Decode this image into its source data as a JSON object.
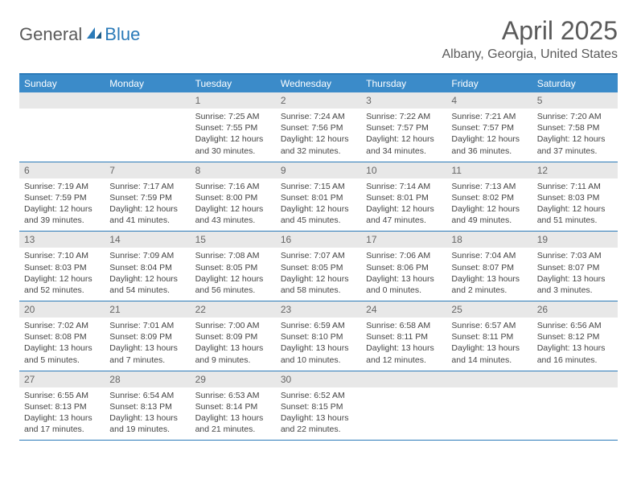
{
  "logo": {
    "text1": "General",
    "text2": "Blue"
  },
  "title": "April 2025",
  "location": "Albany, Georgia, United States",
  "colors": {
    "header_bg": "#3b8bc9",
    "border": "#2a7ab8",
    "daynum_bg": "#e8e8e8",
    "text": "#444444",
    "title_color": "#5a5a5a"
  },
  "fonts": {
    "title_size": 32,
    "location_size": 16,
    "header_size": 12,
    "body_size": 10.5
  },
  "day_names": [
    "Sunday",
    "Monday",
    "Tuesday",
    "Wednesday",
    "Thursday",
    "Friday",
    "Saturday"
  ],
  "weeks": [
    [
      null,
      null,
      {
        "n": "1",
        "sr": "7:25 AM",
        "ss": "7:55 PM",
        "dl": "12 hours and 30 minutes."
      },
      {
        "n": "2",
        "sr": "7:24 AM",
        "ss": "7:56 PM",
        "dl": "12 hours and 32 minutes."
      },
      {
        "n": "3",
        "sr": "7:22 AM",
        "ss": "7:57 PM",
        "dl": "12 hours and 34 minutes."
      },
      {
        "n": "4",
        "sr": "7:21 AM",
        "ss": "7:57 PM",
        "dl": "12 hours and 36 minutes."
      },
      {
        "n": "5",
        "sr": "7:20 AM",
        "ss": "7:58 PM",
        "dl": "12 hours and 37 minutes."
      }
    ],
    [
      {
        "n": "6",
        "sr": "7:19 AM",
        "ss": "7:59 PM",
        "dl": "12 hours and 39 minutes."
      },
      {
        "n": "7",
        "sr": "7:17 AM",
        "ss": "7:59 PM",
        "dl": "12 hours and 41 minutes."
      },
      {
        "n": "8",
        "sr": "7:16 AM",
        "ss": "8:00 PM",
        "dl": "12 hours and 43 minutes."
      },
      {
        "n": "9",
        "sr": "7:15 AM",
        "ss": "8:01 PM",
        "dl": "12 hours and 45 minutes."
      },
      {
        "n": "10",
        "sr": "7:14 AM",
        "ss": "8:01 PM",
        "dl": "12 hours and 47 minutes."
      },
      {
        "n": "11",
        "sr": "7:13 AM",
        "ss": "8:02 PM",
        "dl": "12 hours and 49 minutes."
      },
      {
        "n": "12",
        "sr": "7:11 AM",
        "ss": "8:03 PM",
        "dl": "12 hours and 51 minutes."
      }
    ],
    [
      {
        "n": "13",
        "sr": "7:10 AM",
        "ss": "8:03 PM",
        "dl": "12 hours and 52 minutes."
      },
      {
        "n": "14",
        "sr": "7:09 AM",
        "ss": "8:04 PM",
        "dl": "12 hours and 54 minutes."
      },
      {
        "n": "15",
        "sr": "7:08 AM",
        "ss": "8:05 PM",
        "dl": "12 hours and 56 minutes."
      },
      {
        "n": "16",
        "sr": "7:07 AM",
        "ss": "8:05 PM",
        "dl": "12 hours and 58 minutes."
      },
      {
        "n": "17",
        "sr": "7:06 AM",
        "ss": "8:06 PM",
        "dl": "13 hours and 0 minutes."
      },
      {
        "n": "18",
        "sr": "7:04 AM",
        "ss": "8:07 PM",
        "dl": "13 hours and 2 minutes."
      },
      {
        "n": "19",
        "sr": "7:03 AM",
        "ss": "8:07 PM",
        "dl": "13 hours and 3 minutes."
      }
    ],
    [
      {
        "n": "20",
        "sr": "7:02 AM",
        "ss": "8:08 PM",
        "dl": "13 hours and 5 minutes."
      },
      {
        "n": "21",
        "sr": "7:01 AM",
        "ss": "8:09 PM",
        "dl": "13 hours and 7 minutes."
      },
      {
        "n": "22",
        "sr": "7:00 AM",
        "ss": "8:09 PM",
        "dl": "13 hours and 9 minutes."
      },
      {
        "n": "23",
        "sr": "6:59 AM",
        "ss": "8:10 PM",
        "dl": "13 hours and 10 minutes."
      },
      {
        "n": "24",
        "sr": "6:58 AM",
        "ss": "8:11 PM",
        "dl": "13 hours and 12 minutes."
      },
      {
        "n": "25",
        "sr": "6:57 AM",
        "ss": "8:11 PM",
        "dl": "13 hours and 14 minutes."
      },
      {
        "n": "26",
        "sr": "6:56 AM",
        "ss": "8:12 PM",
        "dl": "13 hours and 16 minutes."
      }
    ],
    [
      {
        "n": "27",
        "sr": "6:55 AM",
        "ss": "8:13 PM",
        "dl": "13 hours and 17 minutes."
      },
      {
        "n": "28",
        "sr": "6:54 AM",
        "ss": "8:13 PM",
        "dl": "13 hours and 19 minutes."
      },
      {
        "n": "29",
        "sr": "6:53 AM",
        "ss": "8:14 PM",
        "dl": "13 hours and 21 minutes."
      },
      {
        "n": "30",
        "sr": "6:52 AM",
        "ss": "8:15 PM",
        "dl": "13 hours and 22 minutes."
      },
      null,
      null,
      null
    ]
  ],
  "labels": {
    "sunrise": "Sunrise: ",
    "sunset": "Sunset: ",
    "daylight": "Daylight: "
  }
}
